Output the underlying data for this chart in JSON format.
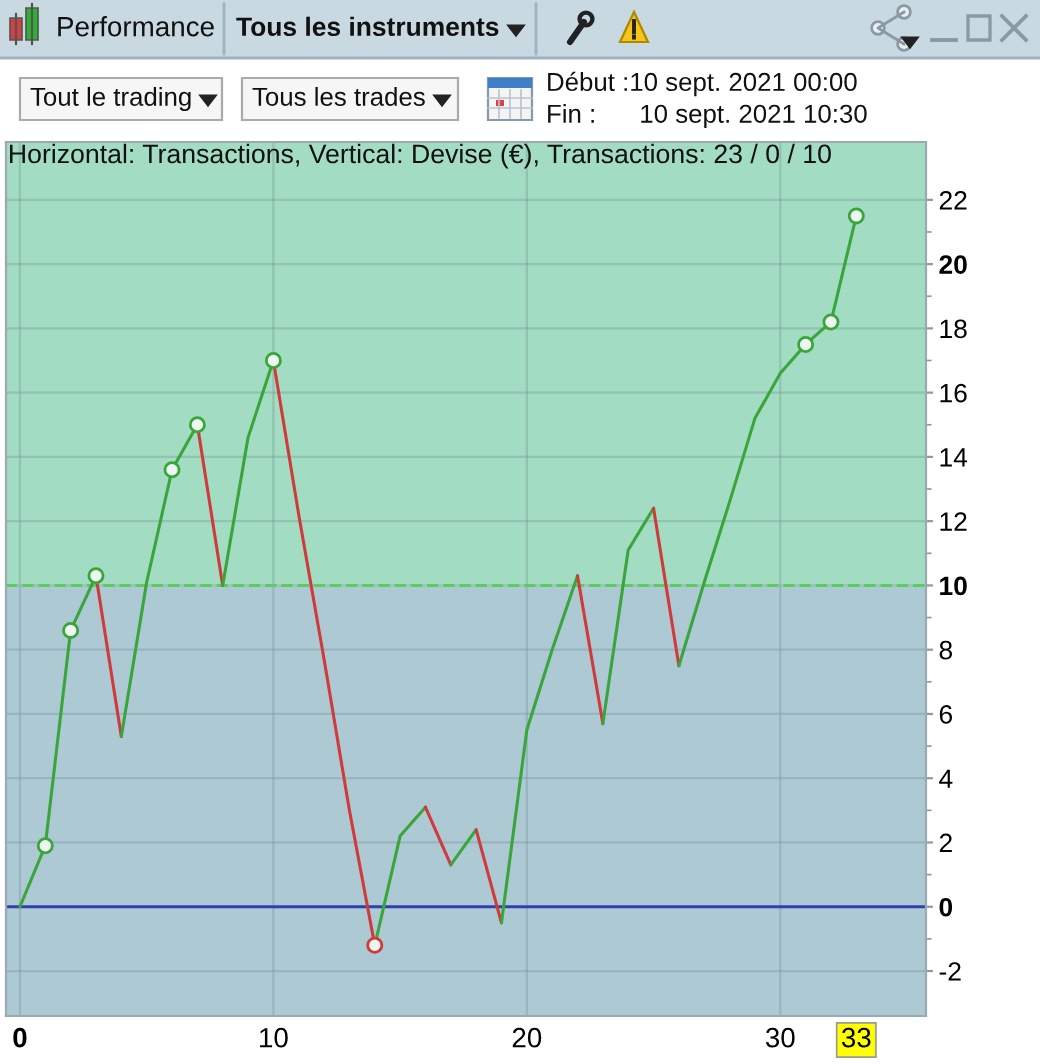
{
  "chart_data": {
    "type": "line",
    "title": "Performance",
    "subtitle": "Horizontal: Transactions, Vertical: Devise (€), Transactions: 23 / 0 / 10",
    "annotations": [
      "Tous les instruments",
      "Tout le trading",
      "Tous les trades",
      "Début :10 sept. 2021 00:00",
      "Fin :      10 sept. 2021 10:30"
    ],
    "series": [
      {
        "color": "#3aa53a",
        "x": [
          0,
          1,
          2,
          3
        ],
        "values": [
          0,
          1.9,
          8.6,
          10.3
        ]
      },
      {
        "color": "#d03a3a",
        "x": [
          3,
          4
        ],
        "values": [
          10.3,
          5.3
        ]
      },
      {
        "color": "#3aa53a",
        "x": [
          4,
          5,
          6,
          7
        ],
        "values": [
          5.3,
          10.1,
          13.6,
          15.0
        ]
      },
      {
        "color": "#d03a3a",
        "x": [
          7,
          8
        ],
        "values": [
          15.0,
          10.0
        ]
      },
      {
        "color": "#3aa53a",
        "x": [
          8,
          9,
          10
        ],
        "values": [
          10.0,
          14.6,
          17.0
        ]
      },
      {
        "color": "#d03a3a",
        "x": [
          10,
          11,
          12,
          13,
          14
        ],
        "values": [
          17.0,
          12.2,
          7.7,
          3.0,
          -1.2
        ]
      },
      {
        "color": "#3aa53a",
        "x": [
          14,
          15,
          16
        ],
        "values": [
          -1.2,
          2.2,
          3.1
        ]
      },
      {
        "color": "#d03a3a",
        "x": [
          16,
          17
        ],
        "values": [
          3.1,
          1.3
        ]
      },
      {
        "color": "#3aa53a",
        "x": [
          17,
          18
        ],
        "values": [
          1.3,
          2.4
        ]
      },
      {
        "color": "#d03a3a",
        "x": [
          18,
          19
        ],
        "values": [
          2.4,
          -0.5
        ]
      },
      {
        "color": "#3aa53a",
        "x": [
          19,
          20,
          21,
          22
        ],
        "values": [
          -0.5,
          5.5,
          8.0,
          10.3
        ]
      },
      {
        "color": "#d03a3a",
        "x": [
          22,
          23
        ],
        "values": [
          10.3,
          5.7
        ]
      },
      {
        "color": "#3aa53a",
        "x": [
          23,
          24,
          25
        ],
        "values": [
          5.7,
          11.1,
          12.4
        ]
      },
      {
        "color": "#d03a3a",
        "x": [
          25,
          26
        ],
        "values": [
          12.4,
          7.5
        ]
      },
      {
        "color": "#3aa53a",
        "x": [
          26,
          27,
          28,
          29,
          30,
          31,
          32,
          33
        ],
        "values": [
          7.5,
          10.1,
          12.6,
          15.2,
          16.6,
          17.5,
          18.2,
          21.5
        ]
      },
      {
        "type": "scatter",
        "marker": "circle",
        "x": [
          1,
          2,
          3,
          6,
          7,
          10,
          14,
          31,
          32,
          33
        ],
        "values": [
          1.9,
          8.6,
          10.3,
          13.6,
          15.0,
          17.0,
          -1.2,
          17.5,
          18.2,
          21.5
        ],
        "colors": [
          "#3aa53a",
          "#3aa53a",
          "#3aa53a",
          "#3aa53a",
          "#3aa53a",
          "#3aa53a",
          "#d03a3a",
          "#3aa53a",
          "#3aa53a",
          "#3aa53a"
        ]
      }
    ],
    "xlim": [
      -0.55,
      35.75
    ],
    "xticks": [
      0,
      10,
      20,
      30,
      33
    ],
    "ylim": [
      -3.4,
      23.8
    ],
    "yticks": [
      -2,
      0,
      2,
      4,
      6,
      8,
      10,
      12,
      14,
      16,
      18,
      20,
      22
    ],
    "bands": [
      {
        "axis": "y",
        "from": 10,
        "to": 23.8,
        "color": "#a2dcc2"
      },
      {
        "axis": "y",
        "from": -3.4,
        "to": 10,
        "color": "#acc9d4"
      }
    ],
    "ref_lines": [
      {
        "axis": "y",
        "value": 10,
        "color": "#5ccc5c",
        "line_style": "dashed"
      },
      {
        "axis": "y",
        "value": 0,
        "color": "#3040b0",
        "line_style": "solid"
      }
    ],
    "grid": true
  }
}
